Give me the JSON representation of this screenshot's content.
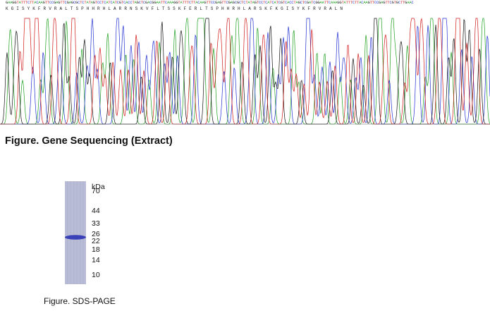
{
  "sequencing": {
    "nucleotides": "GAAGGTATTTCTTACAAGTTCCGAGTTCGAGCGCTCTATAGTCCTCATCATCGTCACCTAGCTCGACGGAATTCAAAGGTATTTCTTACAAGTTCCGAGTTCGAGCGCTCTATAGTCCTCATCATCGTCACCTAGCTCGATCGGAATTCAAAGGTATTTCTTACAAGTTCCGAGTTCGTGCTTGAAC",
    "amino_acids": "KGISYKFRVRALTSPHHRHLARRNSKVFLTSSKFERLTSPHHRHLARSKFKGISYKFRVRALN",
    "colors": {
      "A": "#1fa01f",
      "C": "#2030d0",
      "G": "#111111",
      "T": "#d01818"
    }
  },
  "figure1": {
    "caption": "Figure. Gene Sequencing (Extract)"
  },
  "gel": {
    "unit": "kDa",
    "markers": [
      {
        "label": "70",
        "kda": 70
      },
      {
        "label": "44",
        "kda": 44
      },
      {
        "label": "33",
        "kda": 33
      },
      {
        "label": "26",
        "kda": 26
      },
      {
        "label": "22",
        "kda": 22
      },
      {
        "label": "18",
        "kda": 18
      },
      {
        "label": "14",
        "kda": 14
      },
      {
        "label": "10",
        "kda": 10
      }
    ],
    "band_kda": 24,
    "lane_color": "#b9bcd6",
    "band_color": "#3a40b8"
  },
  "figure2": {
    "caption": "Figure. SDS-PAGE"
  }
}
